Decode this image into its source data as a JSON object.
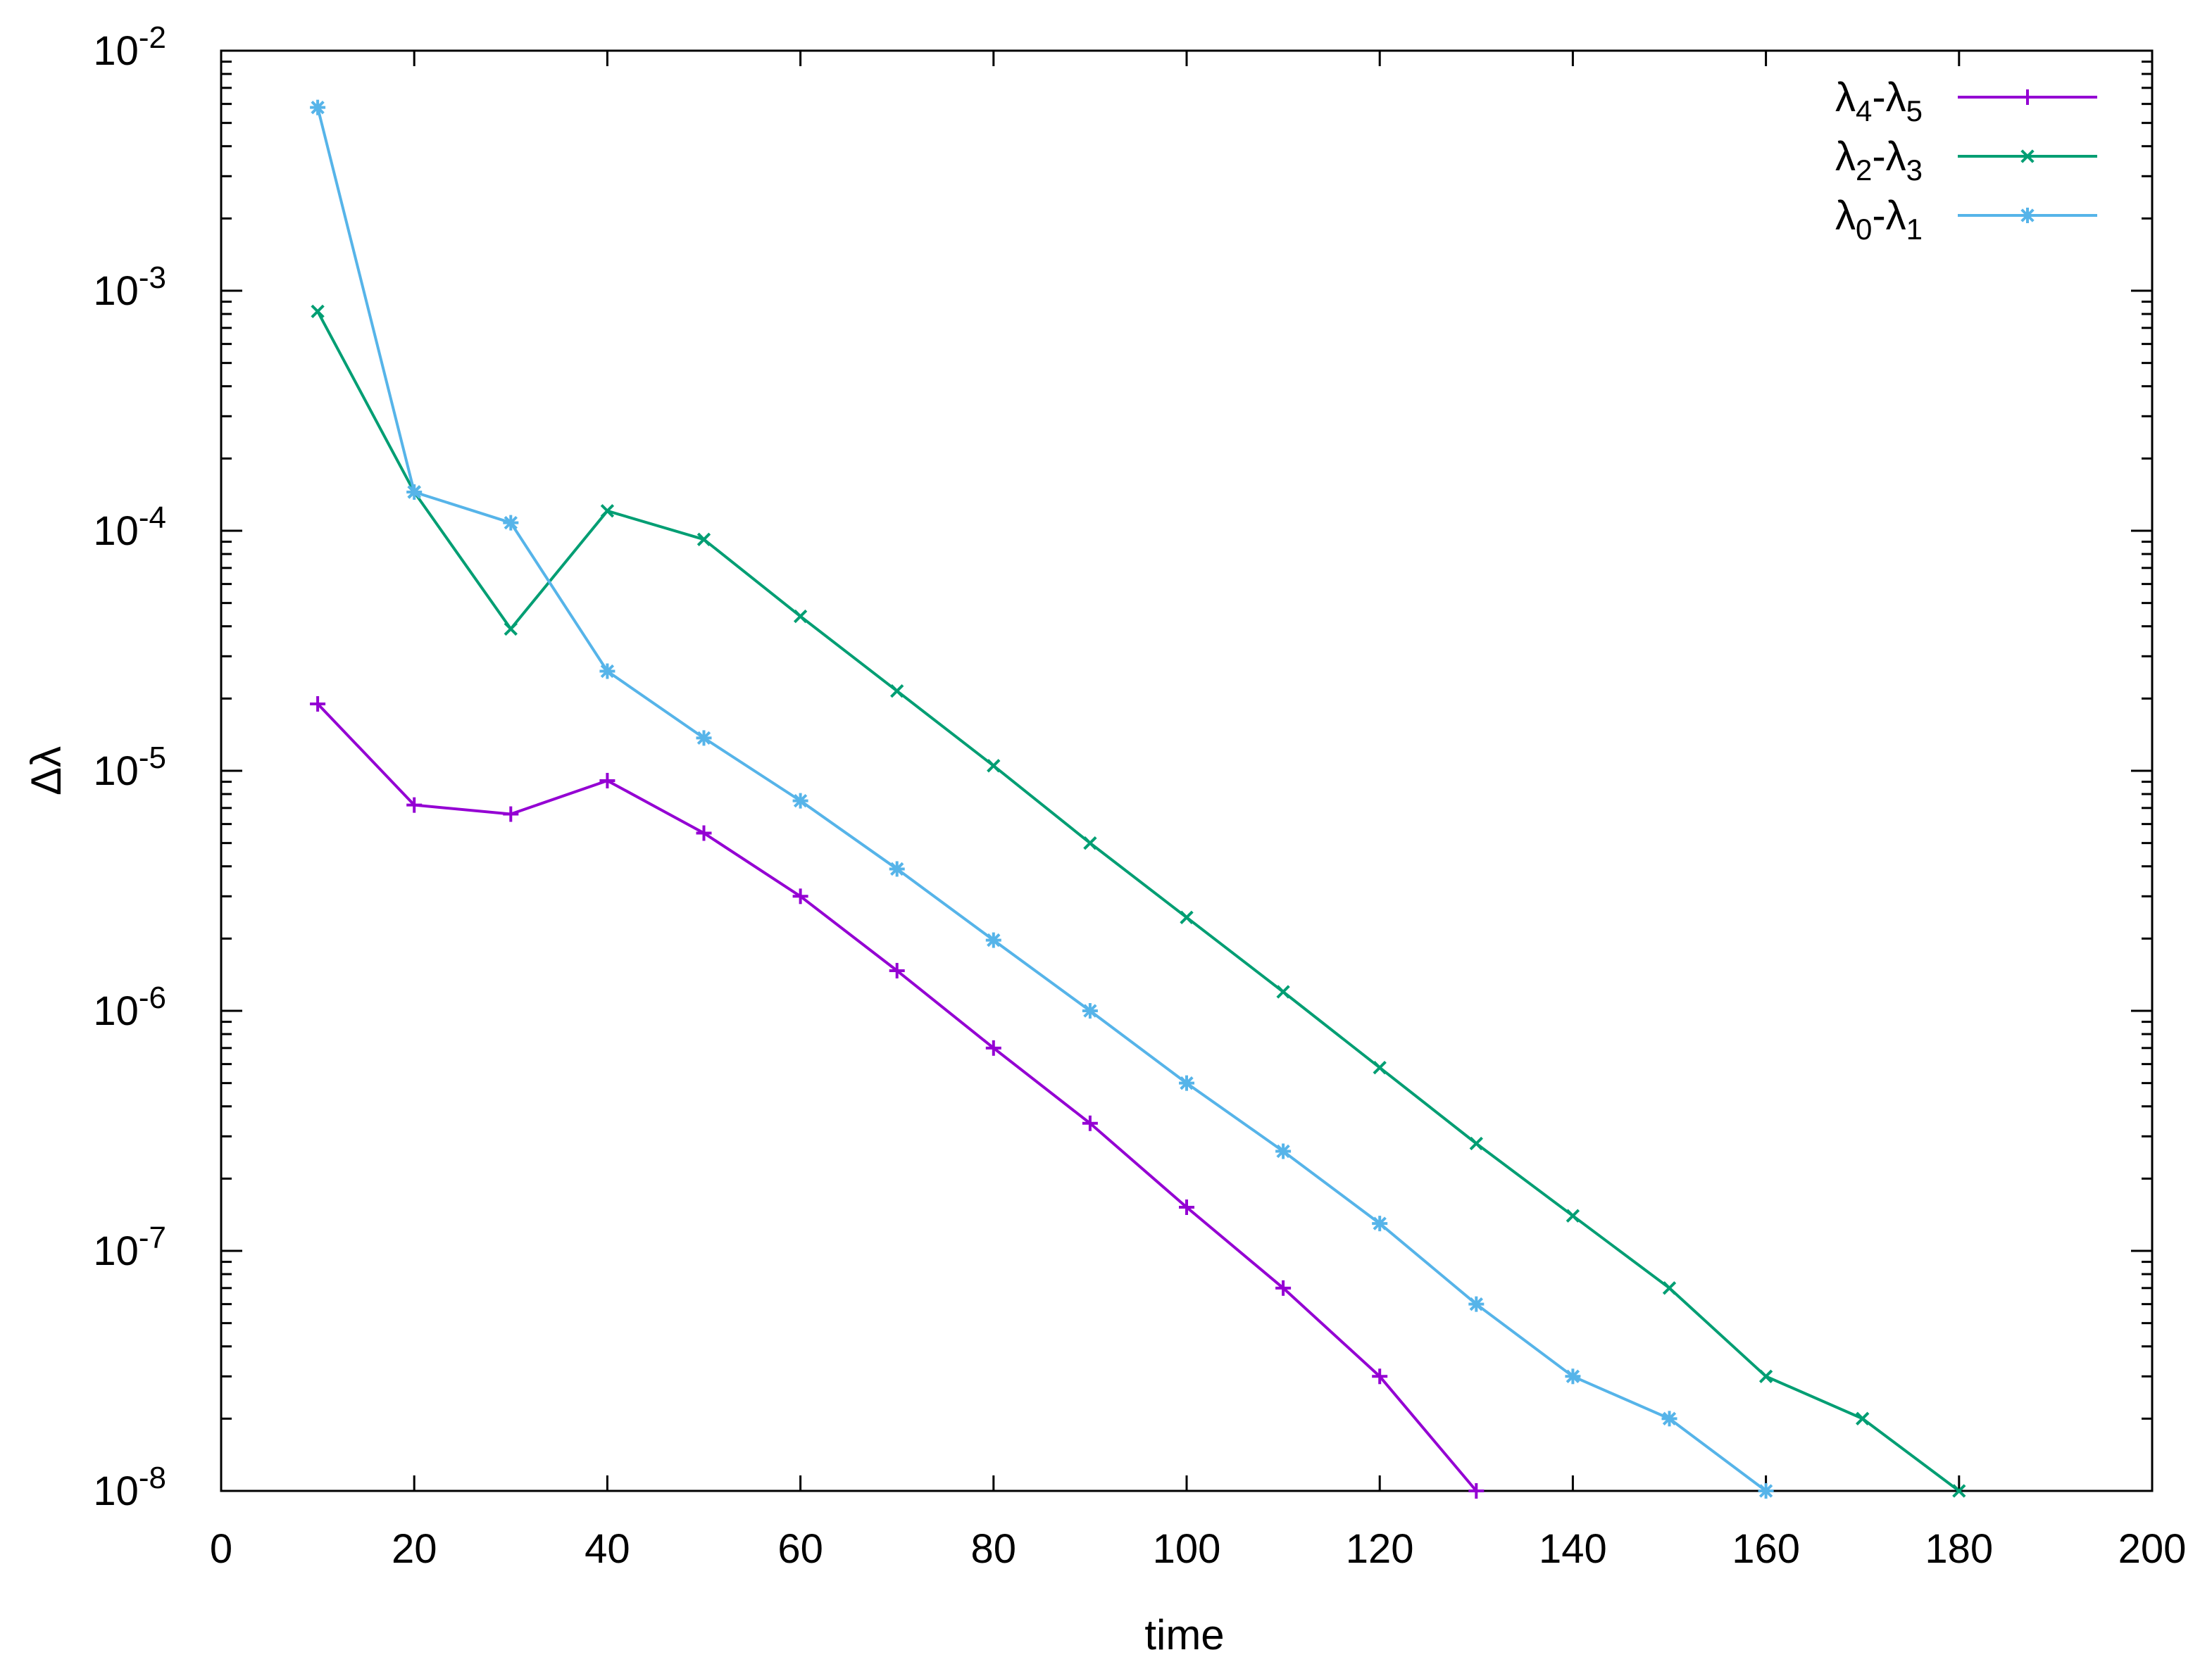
{
  "chart_data": {
    "type": "line",
    "xlabel": "time",
    "ylabel": "Δλ",
    "xlim": [
      0,
      200
    ],
    "ylim": [
      1e-08,
      0.01
    ],
    "yscale": "log",
    "grid": false,
    "legend_position": "top-right",
    "x_ticks": [
      "0",
      "20",
      "40",
      "60",
      "80",
      "100",
      "120",
      "140",
      "160",
      "180",
      "200"
    ],
    "y_ticks": [
      {
        "base": "10",
        "exp": "-8"
      },
      {
        "base": "10",
        "exp": "-7"
      },
      {
        "base": "10",
        "exp": "-6"
      },
      {
        "base": "10",
        "exp": "-5"
      },
      {
        "base": "10",
        "exp": "-4"
      },
      {
        "base": "10",
        "exp": "-3"
      },
      {
        "base": "10",
        "exp": "-2"
      }
    ],
    "series": [
      {
        "name_parts": {
          "a": "λ",
          "a_sub": "4",
          "sep": "-",
          "b": "λ",
          "b_sub": "5"
        },
        "color": "#9400d3",
        "marker": "plus",
        "x": [
          10,
          20,
          30,
          40,
          50,
          60,
          70,
          80,
          90,
          100,
          110,
          120,
          130
        ],
        "y": [
          1.9e-05,
          7.2e-06,
          6.6e-06,
          9.1e-06,
          5.5e-06,
          3e-06,
          1.47e-06,
          7e-07,
          3.4e-07,
          1.52e-07,
          7e-08,
          3e-08,
          1e-08
        ]
      },
      {
        "name_parts": {
          "a": "λ",
          "a_sub": "2",
          "sep": "-",
          "b": "λ",
          "b_sub": "3"
        },
        "color": "#009e73",
        "marker": "cross",
        "x": [
          10,
          20,
          30,
          40,
          50,
          60,
          70,
          80,
          90,
          100,
          110,
          120,
          130,
          140,
          150,
          160,
          170,
          180
        ],
        "y": [
          0.00082,
          0.000145,
          3.9e-05,
          0.000121,
          9.2e-05,
          4.4e-05,
          2.15e-05,
          1.05e-05,
          5e-06,
          2.45e-06,
          1.2e-06,
          5.8e-07,
          2.8e-07,
          1.4e-07,
          7e-08,
          3e-08,
          2e-08,
          1e-08
        ]
      },
      {
        "name_parts": {
          "a": "λ",
          "a_sub": "0",
          "sep": "-",
          "b": "λ",
          "b_sub": "1"
        },
        "color": "#56b4e9",
        "marker": "star",
        "x": [
          10,
          20,
          30,
          40,
          50,
          60,
          70,
          80,
          90,
          100,
          110,
          120,
          130,
          140,
          150,
          160
        ],
        "y": [
          0.0058,
          0.000145,
          0.000108,
          2.6e-05,
          1.37e-05,
          7.5e-06,
          3.9e-06,
          1.97e-06,
          1e-06,
          5e-07,
          2.6e-07,
          1.3e-07,
          6e-08,
          3e-08,
          2e-08,
          1e-08
        ]
      }
    ]
  }
}
